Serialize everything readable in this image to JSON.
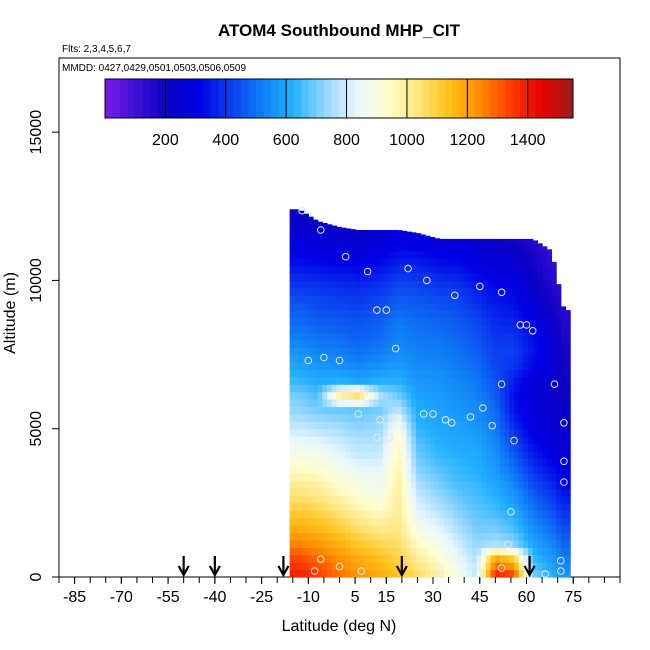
{
  "chart_data": {
    "type": "heatmap",
    "title": "ATOM4 Southbound MHP_CIT",
    "subtitle_flights": "Flts: 2,3,4,5,6,7",
    "subtitle_dates": "MMDD: 0427,0429,0501,0503,0506,0509",
    "xlabel": "Latitude (deg N)",
    "ylabel": "Altitude (m)",
    "xlim": [
      -90,
      90
    ],
    "ylim": [
      0,
      17500
    ],
    "x_ticks": [
      "-85",
      "-70",
      "-55",
      "-40",
      "-25",
      "-10",
      "5",
      "15",
      "30",
      "45",
      "60",
      "75"
    ],
    "x_tick_values": [
      -85,
      -70,
      -55,
      -40,
      -25,
      -10,
      5,
      15,
      30,
      45,
      60,
      75
    ],
    "y_ticks": [
      "0",
      "5000",
      "10000",
      "15000"
    ],
    "y_tick_values": [
      0,
      5000,
      10000,
      15000
    ],
    "colorbar": {
      "range": [
        0,
        1550
      ],
      "tick_labels": [
        "200",
        "400",
        "600",
        "800",
        "1000",
        "1200",
        "1400"
      ],
      "tick_values": [
        200,
        400,
        600,
        800,
        1000,
        1200,
        1400
      ],
      "colors": [
        "#7d1be8",
        "#3d10d4",
        "#0a00c4",
        "#0000e6",
        "#0b3cf0",
        "#0f7cf5",
        "#22b0ff",
        "#8fd6ff",
        "#e6f6ff",
        "#ffffd2",
        "#ffe680",
        "#ffc21a",
        "#ff8c00",
        "#ff3c00",
        "#e60000",
        "#9b1c1c"
      ]
    },
    "profile_altitudes": [
      0,
      500,
      1000,
      1500,
      2000,
      2500,
      3000,
      3500,
      4000,
      4500,
      5000,
      5500,
      6000,
      6500,
      7000,
      7500,
      8000,
      8500,
      9000,
      9500,
      10000,
      10500,
      11000,
      11500,
      12000
    ],
    "profiles": [
      {
        "lat": -13,
        "top": 12400,
        "values": [
          1390,
          1330,
          1250,
          1180,
          1120,
          1060,
          1010,
          950,
          890,
          830,
          780,
          730,
          700,
          640,
          600,
          560,
          520,
          490,
          460,
          420,
          380,
          330,
          300,
          260,
          220
        ]
      },
      {
        "lat": -7,
        "top": 12000,
        "values": [
          1340,
          1290,
          1220,
          1160,
          1100,
          1040,
          990,
          930,
          880,
          820,
          760,
          700,
          660,
          610,
          570,
          530,
          500,
          470,
          440,
          410,
          370,
          320,
          280,
          240,
          200
        ]
      },
      {
        "lat": 0,
        "top": 11800,
        "values": [
          1270,
          1230,
          1170,
          1110,
          1050,
          990,
          930,
          880,
          830,
          790,
          740,
          690,
          980,
          620,
          560,
          520,
          490,
          460,
          430,
          400,
          360,
          310,
          270,
          230,
          190
        ]
      },
      {
        "lat": 6,
        "top": 11700,
        "values": [
          1220,
          1180,
          1120,
          1060,
          1000,
          940,
          890,
          840,
          790,
          760,
          720,
          680,
          1050,
          600,
          540,
          500,
          470,
          450,
          420,
          390,
          350,
          300,
          260,
          220,
          180
        ]
      },
      {
        "lat": 13,
        "top": 11700,
        "values": [
          1180,
          1140,
          1080,
          1020,
          960,
          900,
          860,
          830,
          790,
          760,
          730,
          700,
          760,
          620,
          560,
          520,
          490,
          470,
          440,
          410,
          370,
          320,
          280,
          240,
          200
        ]
      },
      {
        "lat": 19,
        "top": 11700,
        "values": [
          1120,
          1090,
          1060,
          1030,
          1010,
          1000,
          990,
          980,
          960,
          940,
          880,
          780,
          690,
          620,
          580,
          550,
          530,
          510,
          480,
          450,
          410,
          360,
          320,
          270,
          230
        ]
      },
      {
        "lat": 25,
        "top": 11600,
        "values": [
          1060,
          1010,
          950,
          890,
          840,
          800,
          760,
          720,
          690,
          660,
          630,
          610,
          590,
          570,
          550,
          530,
          510,
          490,
          470,
          440,
          400,
          360,
          310,
          270,
          230
        ]
      },
      {
        "lat": 32,
        "top": 11400,
        "values": [
          980,
          930,
          880,
          830,
          780,
          740,
          700,
          670,
          640,
          620,
          600,
          590,
          580,
          560,
          540,
          520,
          500,
          480,
          450,
          420,
          380,
          330,
          290,
          250,
          210
        ]
      },
      {
        "lat": 38,
        "top": 11400,
        "values": [
          880,
          840,
          800,
          760,
          720,
          690,
          660,
          640,
          620,
          600,
          590,
          570,
          560,
          540,
          520,
          500,
          480,
          460,
          440,
          410,
          370,
          320,
          280,
          240,
          200
        ]
      },
      {
        "lat": 44,
        "top": 11400,
        "values": [
          780,
          760,
          730,
          700,
          680,
          660,
          640,
          620,
          610,
          590,
          570,
          550,
          530,
          510,
          490,
          470,
          450,
          430,
          400,
          370,
          330,
          290,
          250,
          210,
          170
        ]
      },
      {
        "lat": 50,
        "top": 11400,
        "values": [
          1380,
          1200,
          760,
          700,
          660,
          630,
          600,
          580,
          560,
          540,
          510,
          490,
          470,
          450,
          430,
          420,
          400,
          380,
          360,
          330,
          300,
          260,
          230,
          190,
          160
        ]
      },
      {
        "lat": 56,
        "top": 11400,
        "values": [
          1320,
          1100,
          720,
          660,
          620,
          580,
          540,
          500,
          460,
          420,
          380,
          350,
          330,
          360,
          400,
          420,
          400,
          370,
          340,
          310,
          280,
          240,
          210,
          180,
          150
        ]
      },
      {
        "lat": 62,
        "top": 11400,
        "values": [
          700,
          650,
          600,
          560,
          520,
          480,
          440,
          400,
          360,
          320,
          290,
          270,
          260,
          280,
          320,
          340,
          330,
          300,
          270,
          240,
          210,
          190,
          170,
          150,
          130
        ]
      },
      {
        "lat": 68,
        "top": 11000,
        "values": [
          620,
          580,
          540,
          500,
          460,
          420,
          380,
          340,
          300,
          270,
          250,
          240,
          230,
          240,
          260,
          270,
          250,
          220,
          190,
          170,
          150,
          130,
          120,
          110,
          100
        ]
      },
      {
        "lat": 72,
        "top": 9000,
        "values": [
          560,
          520,
          480,
          440,
          400,
          360,
          320,
          290,
          260,
          240,
          220,
          210,
          200,
          200,
          190,
          180,
          170,
          160,
          150,
          140,
          130,
          120,
          110,
          100,
          90
        ]
      }
    ],
    "flight_arrows_lat": [
      -50,
      -40,
      -18,
      20,
      61
    ]
  }
}
